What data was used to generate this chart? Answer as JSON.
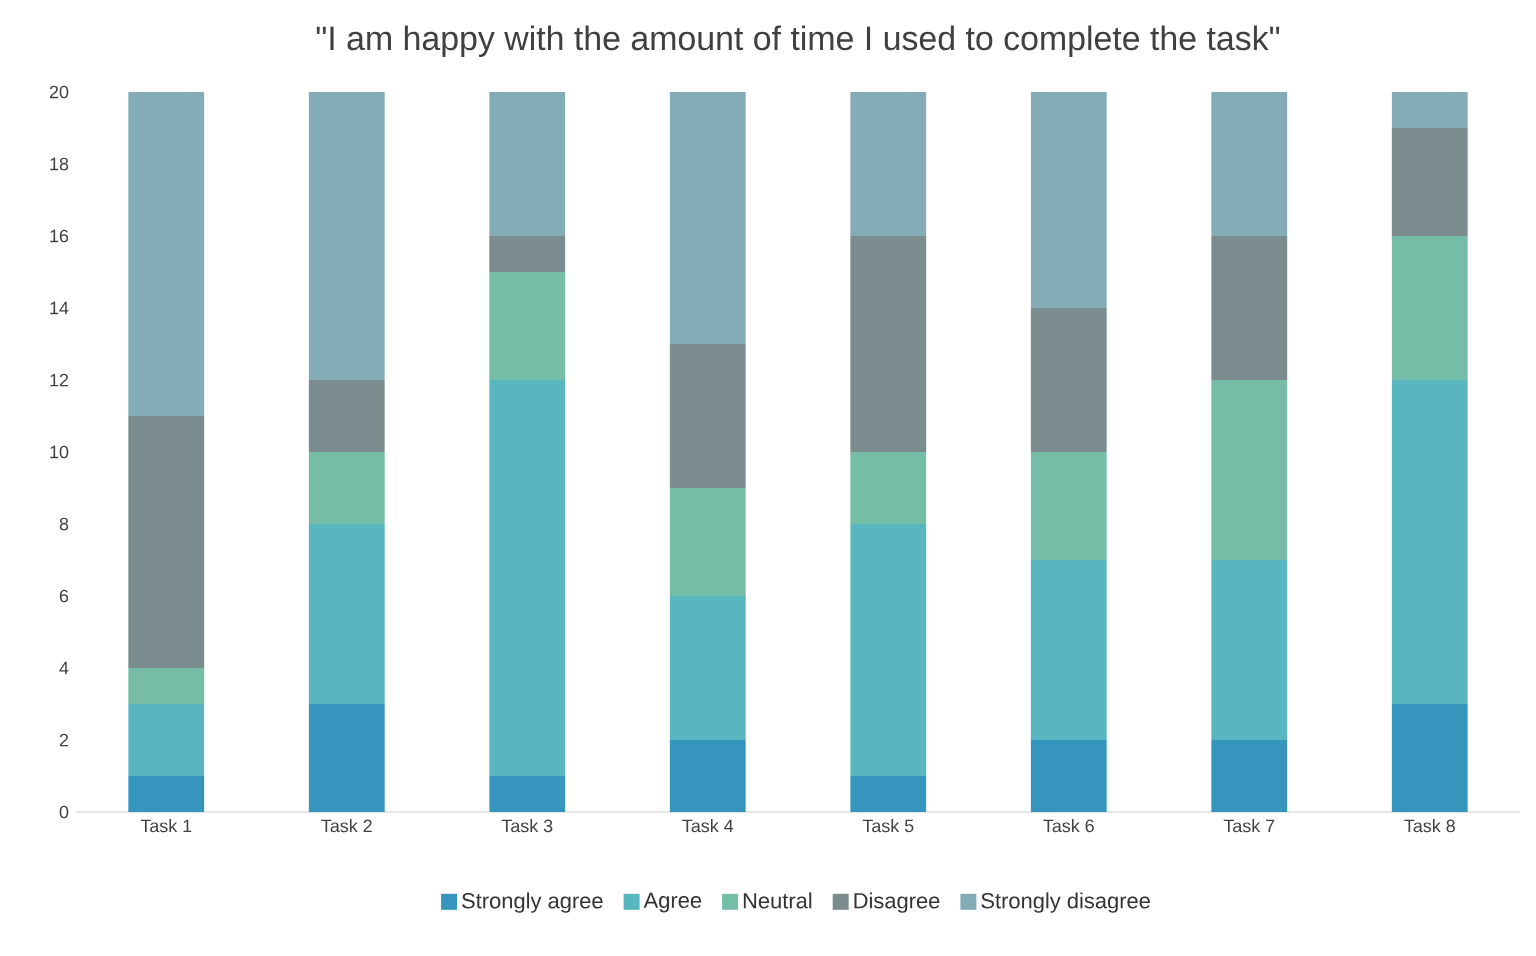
{
  "chart_data": {
    "type": "bar",
    "stacked": true,
    "title": "\"I am happy with the amount of time I used to complete the task\"",
    "categories": [
      "Task 1",
      "Task 2",
      "Task 3",
      "Task 4",
      "Task 5",
      "Task 6",
      "Task 7",
      "Task 8"
    ],
    "series": [
      {
        "name": "Strongly agree",
        "color": "#3595bd",
        "values": [
          1,
          3,
          1,
          2,
          1,
          2,
          2,
          3
        ]
      },
      {
        "name": "Agree",
        "color": "#58b6c0",
        "values": [
          2,
          5,
          11,
          4,
          7,
          5,
          5,
          9
        ]
      },
      {
        "name": "Neutral",
        "color": "#75bda7",
        "values": [
          1,
          2,
          3,
          3,
          2,
          3,
          5,
          4
        ]
      },
      {
        "name": "Disagree",
        "color": "#7a8c8e",
        "values": [
          7,
          2,
          1,
          4,
          6,
          4,
          4,
          3
        ]
      },
      {
        "name": "Strongly disagree",
        "color": "#84acb6",
        "values": [
          9,
          8,
          4,
          7,
          4,
          6,
          4,
          1
        ]
      }
    ],
    "ylim": [
      0,
      20
    ],
    "yticks": [
      0,
      2,
      4,
      6,
      8,
      10,
      12,
      14,
      16,
      18,
      20
    ],
    "grid": false,
    "legend": "bottom"
  }
}
